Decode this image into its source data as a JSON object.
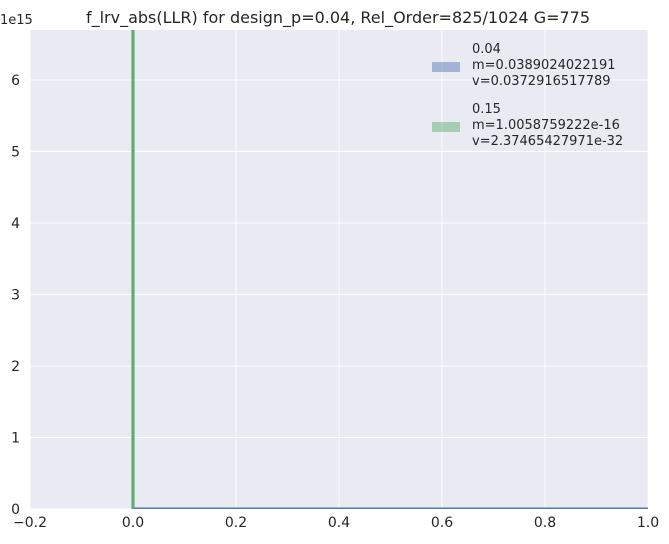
{
  "chart_data": {
    "type": "histogram",
    "title": "f_lrv_abs(LLR) for design_p=0.04, Rel_Order=825/1024 G=775",
    "xlabel": "",
    "ylabel": "",
    "xlim": [
      -0.2,
      1.0
    ],
    "ylim": [
      0,
      6.7
    ],
    "y_scale_exponent_label": "1e15",
    "x_ticks": [
      -0.2,
      0.0,
      0.2,
      0.4,
      0.6,
      0.8,
      1.0
    ],
    "x_tick_labels": [
      "−0.2",
      "0.0",
      "0.2",
      "0.4",
      "0.6",
      "0.8",
      "1.0"
    ],
    "y_ticks": [
      0,
      1,
      2,
      3,
      4,
      5,
      6
    ],
    "y_tick_labels": [
      "0",
      "1",
      "2",
      "3",
      "4",
      "5",
      "6"
    ],
    "grid": true,
    "legend_position": "top-right",
    "series": [
      {
        "name": "0.04",
        "legend_lines": [
          "0.04",
          " m=0.0389024022191",
          " v=0.0372916517789"
        ],
        "color": "#4c72b0",
        "bins": [
          [
            0.0,
            1.0
          ]
        ],
        "values": [
          0.0
        ]
      },
      {
        "name": "0.15",
        "legend_lines": [
          "0.15",
          " m=1.0058759222e-16",
          " v=2.37465427971e-32"
        ],
        "color": "#55a868",
        "bins": [
          [
            -0.003,
            0.003
          ]
        ],
        "values": [
          6.7
        ]
      }
    ]
  }
}
